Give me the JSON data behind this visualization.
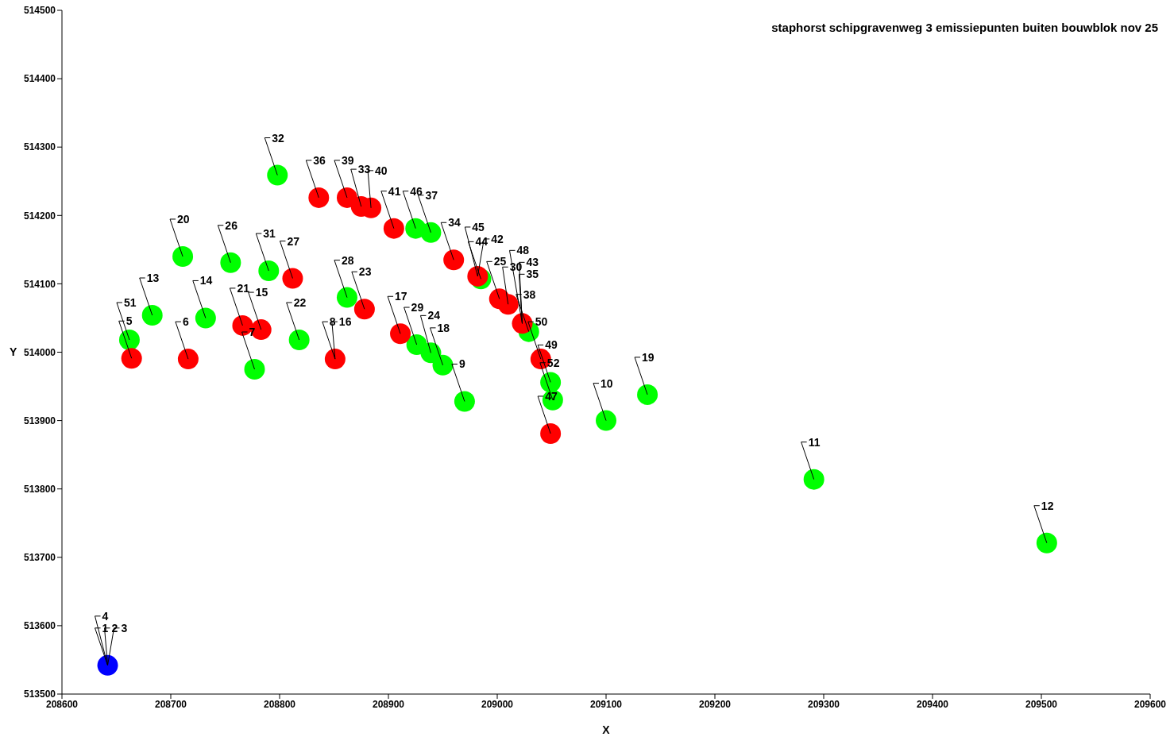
{
  "chart_data": {
    "type": "scatter",
    "title": "staphorst schipgravenweg 3 emissiepunten buiten bouwblok nov 25",
    "xlabel": "X",
    "ylabel": "Y",
    "xlim": [
      208600,
      209600
    ],
    "xticks": [
      208600,
      208700,
      208800,
      208900,
      209000,
      209100,
      209200,
      209300,
      209400,
      209500,
      209600
    ],
    "ylim": [
      513500,
      514500
    ],
    "yticks": [
      513500,
      513600,
      513700,
      513800,
      513900,
      514000,
      514100,
      514200,
      514300,
      514400,
      514500
    ],
    "grid": false,
    "legend": false,
    "marker": "circle",
    "series": [
      {
        "color": "#00ff00",
        "x": [
          208662,
          208683,
          208711,
          208732,
          208755,
          208790,
          208777,
          208818,
          208798,
          208862,
          208926,
          208939,
          208950,
          208970,
          208925,
          208939,
          208985,
          209029,
          209049,
          209051,
          209100,
          209138,
          209291,
          209505
        ],
        "values": [
          514018,
          514054,
          514140,
          514050,
          514131,
          514119,
          513975,
          514018,
          514259,
          514080,
          514011,
          513999,
          513981,
          513928,
          514181,
          514175,
          514107,
          514030,
          513956,
          513930,
          513900,
          513938,
          513814,
          513721
        ]
      },
      {
        "color": "#ff0000",
        "x": [
          208664,
          208716,
          208766,
          208783,
          208812,
          208851,
          208878,
          208836,
          208862,
          208875,
          208884,
          208905,
          208911,
          208960,
          208982,
          209002,
          209010,
          209023,
          209040,
          209049
        ],
        "values": [
          513991,
          513990,
          514039,
          514033,
          514108,
          513990,
          514063,
          514226,
          514226,
          514213,
          514211,
          514181,
          514027,
          514135,
          514111,
          514078,
          514070,
          514042,
          513990,
          513881
        ]
      },
      {
        "color": "#0000ff",
        "x": [
          208642
        ],
        "values": [
          513542
        ]
      }
    ],
    "annotations": [
      {
        "text": "51",
        "x": 208662,
        "y": 514018
      },
      {
        "text": "13",
        "x": 208683,
        "y": 514054
      },
      {
        "text": "20",
        "x": 208711,
        "y": 514140
      },
      {
        "text": "14",
        "x": 208732,
        "y": 514050
      },
      {
        "text": "26",
        "x": 208755,
        "y": 514131
      },
      {
        "text": "31",
        "x": 208790,
        "y": 514119
      },
      {
        "text": "7",
        "x": 208777,
        "y": 513975
      },
      {
        "text": "22",
        "x": 208818,
        "y": 514018
      },
      {
        "text": "32",
        "x": 208798,
        "y": 514259
      },
      {
        "text": "28",
        "x": 208862,
        "y": 514080
      },
      {
        "text": "29",
        "x": 208926,
        "y": 514011
      },
      {
        "text": "24",
        "x": 208939,
        "y": 513999
      },
      {
        "text": "18",
        "x": 208950,
        "y": 513981
      },
      {
        "text": "9",
        "x": 208970,
        "y": 513928
      },
      {
        "text": "46",
        "x": 208925,
        "y": 514181
      },
      {
        "text": "37",
        "x": 208939,
        "y": 514175
      },
      {
        "text": "44",
        "x": 208985,
        "y": 514107
      },
      {
        "text": "38",
        "x": 209029,
        "y": 514030
      },
      {
        "text": "49",
        "x": 209049,
        "y": 513956
      },
      {
        "text": "52",
        "x": 209051,
        "y": 513930
      },
      {
        "text": "10",
        "x": 209100,
        "y": 513900
      },
      {
        "text": "19",
        "x": 209138,
        "y": 513938
      },
      {
        "text": "11",
        "x": 209291,
        "y": 513814
      },
      {
        "text": "12",
        "x": 209505,
        "y": 513721
      },
      {
        "text": "5",
        "x": 208664,
        "y": 513991
      },
      {
        "text": "6",
        "x": 208716,
        "y": 513990
      },
      {
        "text": "21",
        "x": 208766,
        "y": 514039
      },
      {
        "text": "15",
        "x": 208783,
        "y": 514033
      },
      {
        "text": "27",
        "x": 208812,
        "y": 514108
      },
      {
        "text": "8",
        "x": 208851,
        "y": 513990
      },
      {
        "text": "16",
        "x": 208851,
        "y": 513990
      },
      {
        "text": "23",
        "x": 208878,
        "y": 514063
      },
      {
        "text": "36",
        "x": 208836,
        "y": 514226
      },
      {
        "text": "39",
        "x": 208862,
        "y": 514226
      },
      {
        "text": "33",
        "x": 208875,
        "y": 514213
      },
      {
        "text": "40",
        "x": 208884,
        "y": 514211
      },
      {
        "text": "41",
        "x": 208905,
        "y": 514181
      },
      {
        "text": "17",
        "x": 208911,
        "y": 514027
      },
      {
        "text": "34",
        "x": 208960,
        "y": 514135
      },
      {
        "text": "42",
        "x": 208982,
        "y": 514111
      },
      {
        "text": "45",
        "x": 208982,
        "y": 514111
      },
      {
        "text": "25",
        "x": 209002,
        "y": 514078
      },
      {
        "text": "30",
        "x": 209010,
        "y": 514070
      },
      {
        "text": "35",
        "x": 209023,
        "y": 514042
      },
      {
        "text": "43",
        "x": 209023,
        "y": 514042
      },
      {
        "text": "48",
        "x": 209023,
        "y": 514042
      },
      {
        "text": "50",
        "x": 209040,
        "y": 513990
      },
      {
        "text": "47",
        "x": 209049,
        "y": 513881
      },
      {
        "text": "1",
        "x": 208642,
        "y": 513542
      },
      {
        "text": "2",
        "x": 208642,
        "y": 513542
      },
      {
        "text": "3",
        "x": 208642,
        "y": 513542
      },
      {
        "text": "4",
        "x": 208642,
        "y": 513542
      }
    ]
  }
}
